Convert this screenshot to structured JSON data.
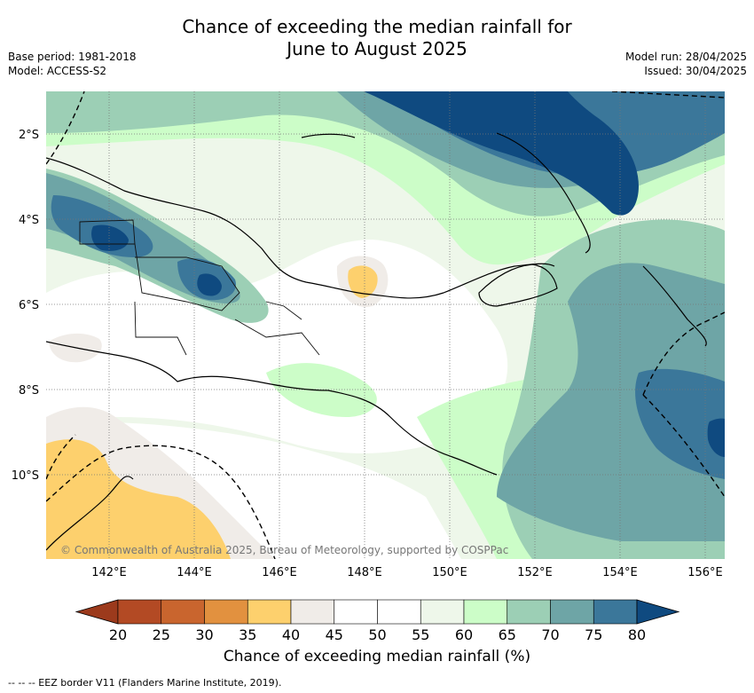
{
  "title": {
    "line1": "Chance of exceeding the median rainfall for",
    "line2": "June to August 2025"
  },
  "meta_left": {
    "base_period": "Base period: 1981-2018",
    "model": "Model: ACCESS-S2"
  },
  "meta_right": {
    "model_run": "Model run: 28/04/2025",
    "issued": "Issued: 30/04/2025"
  },
  "axes": {
    "lon_labels": [
      "142°E",
      "144°E",
      "146°E",
      "148°E",
      "150°E",
      "152°E",
      "154°E",
      "156°E"
    ],
    "lat_labels": [
      "2°S",
      "4°S",
      "6°S",
      "8°S",
      "10°S"
    ]
  },
  "copyright": "© Commonwealth of Australia 2025, Bureau of Meteorology, supported by COSPPac",
  "colorbar": {
    "ticks": [
      "20",
      "25",
      "30",
      "35",
      "40",
      "45",
      "50",
      "55",
      "60",
      "65",
      "70",
      "75",
      "80"
    ],
    "colors": [
      "#9c3a1c",
      "#b34a24",
      "#c9652e",
      "#e2913f",
      "#fdd06d",
      "#f0ece8",
      "#ffffff",
      "#ffffff",
      "#eef7ea",
      "#ccfdc8",
      "#9ccfb5",
      "#6ea5a6",
      "#3b779a",
      "#0f4a80"
    ],
    "label": "Chance of exceeding median rainfall (%)"
  },
  "footer": "-- --  -- EEZ border V11 (Flanders Marine Institute, 2019)."
}
